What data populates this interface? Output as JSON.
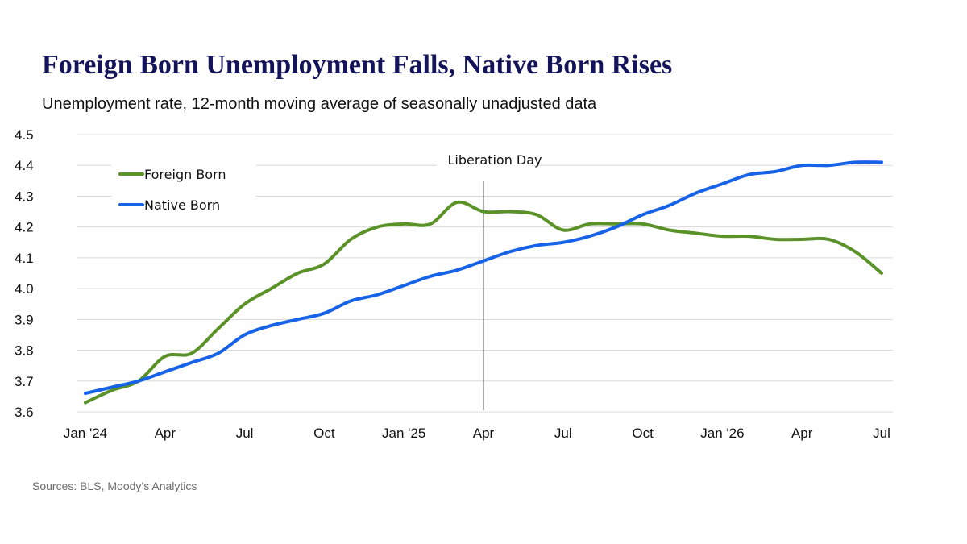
{
  "header": {
    "title": "Foreign Born Unemployment Falls, Native Born Rises",
    "subtitle": "Unemployment rate, 12-month moving average of seasonally unadjusted data"
  },
  "footer": {
    "source": "Sources: BLS, Moody’s Analytics"
  },
  "chart_data": {
    "type": "line",
    "title": "Foreign Born Unemployment Falls, Native Born Rises",
    "subtitle": "Unemployment rate, 12-month moving average of seasonally unadjusted data",
    "ylim": [
      3.6,
      4.5
    ],
    "y_ticks": [
      "3.6",
      "3.7",
      "3.8",
      "3.9",
      "4.0",
      "4.1",
      "4.2",
      "4.3",
      "4.4",
      "4.5"
    ],
    "x": [
      "2024-01",
      "2024-02",
      "2024-03",
      "2024-04",
      "2024-05",
      "2024-06",
      "2024-07",
      "2024-08",
      "2024-09",
      "2024-10",
      "2024-11",
      "2024-12",
      "2025-01",
      "2025-02",
      "2025-03",
      "2025-04",
      "2025-05",
      "2025-06",
      "2025-07",
      "2025-08",
      "2025-09",
      "2025-10",
      "2025-11",
      "2025-12",
      "2026-01",
      "2026-02",
      "2026-03",
      "2026-04",
      "2026-05",
      "2026-06",
      "2026-07"
    ],
    "x_tick_labels": [
      {
        "x": "2024-01",
        "label": "Jan '24"
      },
      {
        "x": "2024-04",
        "label": "Apr"
      },
      {
        "x": "2024-07",
        "label": "Jul"
      },
      {
        "x": "2024-10",
        "label": "Oct"
      },
      {
        "x": "2025-01",
        "label": "Jan '25"
      },
      {
        "x": "2025-04",
        "label": "Apr"
      },
      {
        "x": "2025-07",
        "label": "Jul"
      },
      {
        "x": "2025-10",
        "label": "Oct"
      },
      {
        "x": "2026-01",
        "label": "Jan '26"
      },
      {
        "x": "2026-04",
        "label": "Apr"
      },
      {
        "x": "2026-07",
        "label": "Jul"
      }
    ],
    "series": [
      {
        "name": "Foreign Born",
        "color": "#5a9228",
        "values": [
          3.63,
          3.67,
          3.7,
          3.78,
          3.79,
          3.87,
          3.95,
          4.0,
          4.05,
          4.08,
          4.16,
          4.2,
          4.21,
          4.21,
          4.28,
          4.25,
          4.25,
          4.24,
          4.19,
          4.21,
          4.21,
          4.21,
          4.19,
          4.18,
          4.17,
          4.17,
          4.16,
          4.16,
          4.16,
          4.12,
          4.05
        ]
      },
      {
        "name": "Native Born",
        "color": "#1763e8",
        "values": [
          3.66,
          3.68,
          3.7,
          3.73,
          3.76,
          3.79,
          3.85,
          3.88,
          3.9,
          3.92,
          3.96,
          3.98,
          4.01,
          4.04,
          4.06,
          4.09,
          4.12,
          4.14,
          4.15,
          4.17,
          4.2,
          4.24,
          4.27,
          4.31,
          4.34,
          4.37,
          4.38,
          4.4,
          4.4,
          4.41,
          4.41
        ]
      }
    ],
    "annotations": [
      {
        "x": "2025-04",
        "label": "Liberation Day",
        "type": "vertical-line"
      }
    ],
    "legend": {
      "placement": "top-left"
    },
    "grid": "horizontal"
  }
}
